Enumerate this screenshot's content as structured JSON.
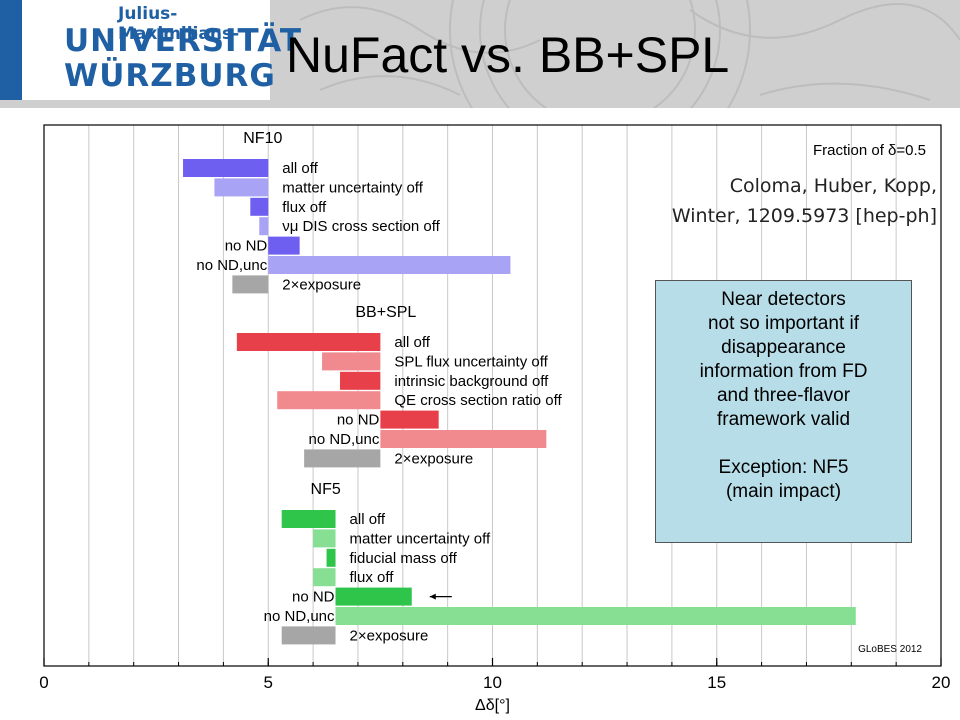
{
  "header": {
    "logo": {
      "line_small": "Julius-Maximilians-",
      "line1": "UNIVERSITÄT",
      "line2": "WÜRZBURG",
      "brand_color": "#1f5fa3"
    },
    "title": "NuFact vs. BB+SPL"
  },
  "callout": {
    "lines": [
      "Near detectors",
      "not so important if",
      "disappearance",
      "information from FD",
      "and three-flavor",
      "framework valid",
      "",
      "Exception: NF5",
      "(main impact)"
    ],
    "background": "#b7dde8"
  },
  "chart_data": {
    "type": "bar",
    "orientation": "horizontal-ranges",
    "title": "Fraction of δ=0.5",
    "citation": [
      "Coloma, Huber, Kopp,",
      "Winter, 1209.5973 [hep-ph]"
    ],
    "xlabel": "Δδ[°]",
    "xlim": [
      0,
      20
    ],
    "xticks": [
      0,
      5,
      10,
      15,
      20
    ],
    "grid": "vertical every 1",
    "watermark": "GLoBES 2012",
    "groups": [
      {
        "name": "NF10",
        "reference": 5.0,
        "color_dark": "#6e5ff0",
        "color_light": "#a9a3f5",
        "bars": [
          {
            "label": "all off",
            "side": "right",
            "from": 3.1,
            "to": 5.0,
            "shade": "dark"
          },
          {
            "label": "matter uncertainty off",
            "side": "right",
            "from": 3.8,
            "to": 5.0,
            "shade": "light"
          },
          {
            "label": "flux off",
            "side": "right",
            "from": 4.6,
            "to": 5.0,
            "shade": "dark"
          },
          {
            "label": "νμ DIS cross section off",
            "side": "right",
            "from": 4.8,
            "to": 5.0,
            "shade": "light"
          },
          {
            "label": "no ND",
            "side": "left",
            "from": 5.0,
            "to": 5.7,
            "shade": "dark"
          },
          {
            "label": "no ND,unc",
            "side": "left",
            "from": 5.0,
            "to": 10.4,
            "shade": "light"
          },
          {
            "label": "2×exposure",
            "side": "right",
            "from": 4.2,
            "to": 5.0,
            "shade": "gray"
          }
        ]
      },
      {
        "name": "BB+SPL",
        "reference": 7.5,
        "color_dark": "#e8404a",
        "color_light": "#f08a8e",
        "bars": [
          {
            "label": "all off",
            "side": "right",
            "from": 4.3,
            "to": 7.5,
            "shade": "dark"
          },
          {
            "label": "SPL flux uncertainty off",
            "side": "right",
            "from": 6.2,
            "to": 7.5,
            "shade": "light"
          },
          {
            "label": "intrinsic background off",
            "side": "right",
            "from": 6.6,
            "to": 7.5,
            "shade": "dark"
          },
          {
            "label": "QE cross section ratio off",
            "side": "right",
            "from": 5.2,
            "to": 7.5,
            "shade": "light"
          },
          {
            "label": "no ND",
            "side": "left",
            "from": 7.5,
            "to": 8.8,
            "shade": "dark"
          },
          {
            "label": "no ND,unc",
            "side": "left",
            "from": 7.5,
            "to": 11.2,
            "shade": "light"
          },
          {
            "label": "2×exposure",
            "side": "right",
            "from": 5.8,
            "to": 7.5,
            "shade": "gray"
          }
        ]
      },
      {
        "name": "NF5",
        "reference": 6.5,
        "color_dark": "#2fc44a",
        "color_light": "#86df92",
        "bars": [
          {
            "label": "all off",
            "side": "right",
            "from": 5.3,
            "to": 6.5,
            "shade": "dark"
          },
          {
            "label": "matter uncertainty off",
            "side": "right",
            "from": 6.0,
            "to": 6.5,
            "shade": "light"
          },
          {
            "label": "fiducial mass off",
            "side": "right",
            "from": 6.3,
            "to": 6.5,
            "shade": "dark"
          },
          {
            "label": "flux off",
            "side": "right",
            "from": 6.0,
            "to": 6.5,
            "shade": "light"
          },
          {
            "label": "no ND",
            "side": "left",
            "from": 6.5,
            "to": 8.2,
            "shade": "dark"
          },
          {
            "label": "no ND,unc",
            "side": "left",
            "from": 6.5,
            "to": 18.1,
            "shade": "light"
          },
          {
            "label": "2×exposure",
            "side": "right",
            "from": 5.3,
            "to": 6.5,
            "shade": "gray"
          }
        ]
      }
    ],
    "gray_color": "#a6a6a6",
    "annotation_arrow": {
      "group": "NF5",
      "bar": "no ND",
      "direction": "left"
    }
  }
}
